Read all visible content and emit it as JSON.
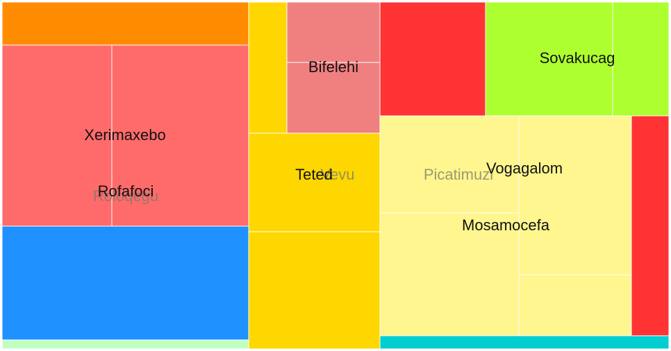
{
  "chart_data": {
    "type": "treemap",
    "title": "",
    "labels": [
      "Xerimaxebo",
      "Rofafoci",
      "Roloqegu",
      "Bifelehi",
      "Teted",
      "Vevu",
      "Picatimuzi",
      "Vogagalom",
      "Mosamocefa",
      "Sovakucag"
    ],
    "groups": [
      {
        "color": "#FF8C00",
        "labels": []
      },
      {
        "color": "#FF6B6B",
        "labels": [
          "Xerimaxebo",
          "Rofafoci",
          "Roloqegu"
        ]
      },
      {
        "color": "#1E90FF",
        "labels": []
      },
      {
        "color": "#C1FFC1",
        "labels": []
      },
      {
        "color": "#FFD700",
        "labels": [
          "Teted",
          "Vevu"
        ]
      },
      {
        "color": "#F08080",
        "labels": [
          "Bifelehi"
        ]
      },
      {
        "color": "#FF3333",
        "labels": []
      },
      {
        "color": "#ADFF2F",
        "labels": [
          "Sovakucag"
        ]
      },
      {
        "color": "#FFF68F",
        "labels": [
          "Picatimuzi",
          "Vogagalom",
          "Mosamocefa"
        ]
      },
      {
        "color": "#00CED1",
        "labels": []
      }
    ]
  }
}
